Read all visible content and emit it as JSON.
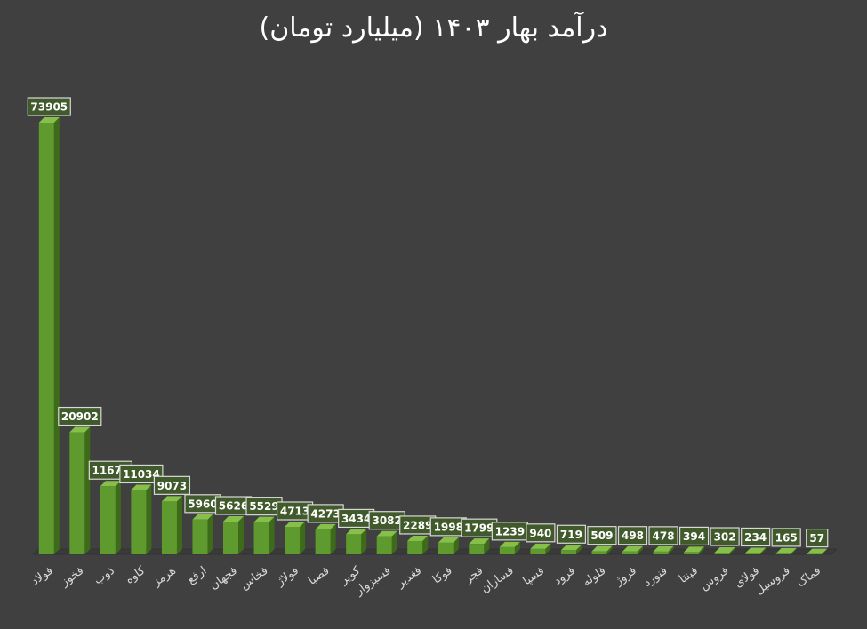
{
  "chart_data": {
    "type": "bar",
    "title": "درآمد بهار ۱۴۰۳ (میلیارد تومان)",
    "xlabel": "",
    "ylabel": "",
    "ylim": [
      0,
      73905
    ],
    "grid": false,
    "legend": "none",
    "data_labels": true,
    "bar_color": "#5e9a2e",
    "bar_side_color": "#3e6b1a",
    "label_box_fill": "#415a2b",
    "label_box_border": "#d8d8d8",
    "categories": [
      "فولاد",
      "فخوز",
      "ذوب",
      "کاوه",
      "هرمز",
      "ارفع",
      "فجهان",
      "فخاس",
      "فولاژ",
      "فصبا",
      "کویر",
      "فسبزوار",
      "فغدیر",
      "فوکا",
      "فجر",
      "فسازان",
      "فسپا",
      "فرود",
      "فلوله",
      "فروژ",
      "فنورد",
      "فپنتا",
      "فروس",
      "فولای",
      "فروسیل",
      "فماک"
    ],
    "values": [
      73905,
      20902,
      11676,
      11034,
      9073,
      5960,
      5626,
      5529,
      4713,
      4273,
      3434,
      3082,
      2289,
      1998,
      1799,
      1239,
      940,
      719,
      509,
      498,
      478,
      394,
      302,
      234,
      165,
      57
    ]
  }
}
